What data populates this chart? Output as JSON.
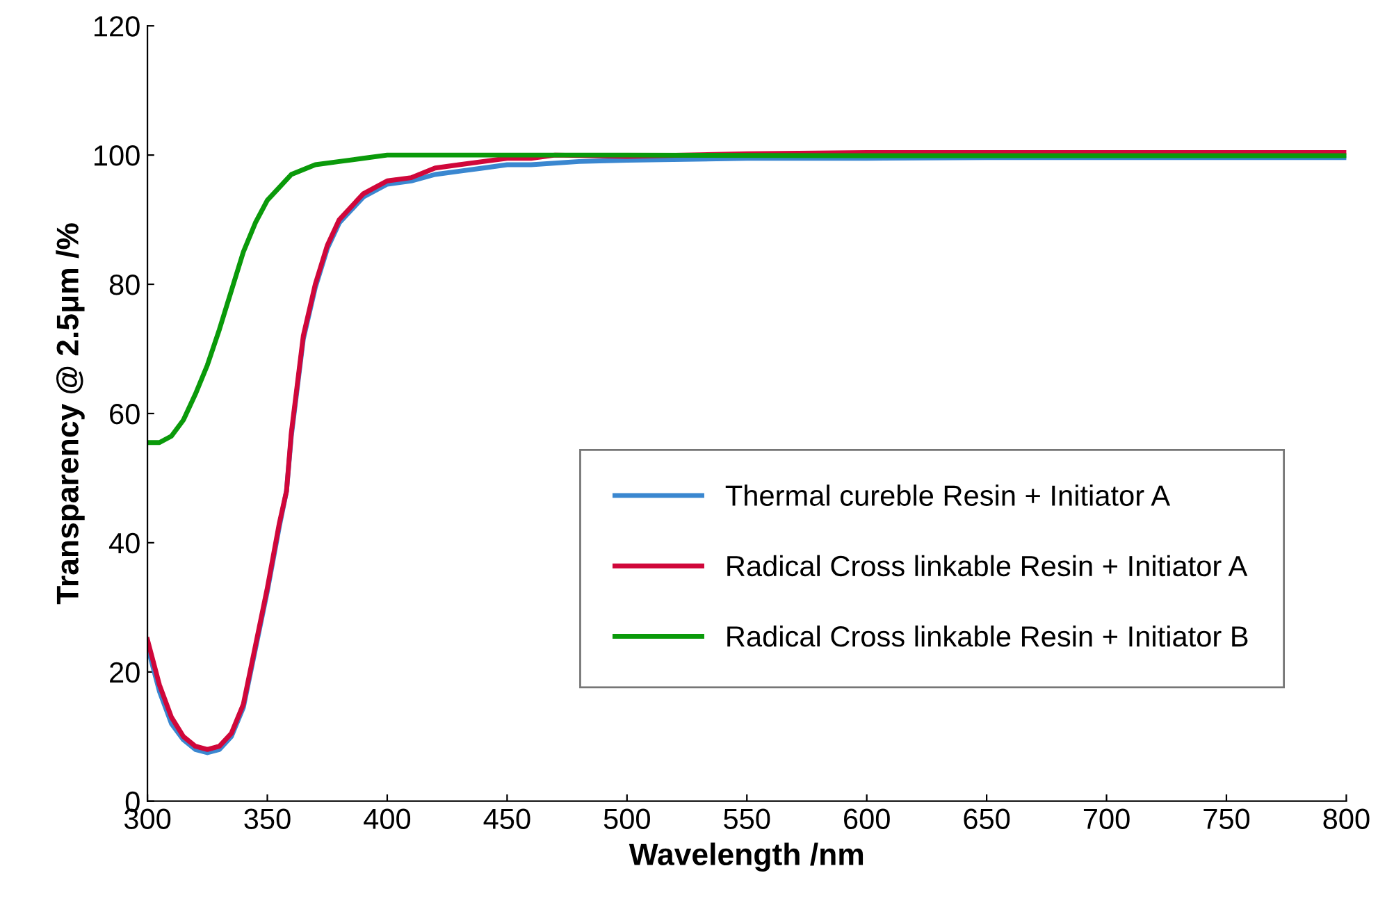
{
  "chart_data": {
    "type": "line",
    "xlabel": "Wavelength /nm",
    "ylabel": "Transparency @ 2.5μm /%",
    "xlim": [
      300,
      800
    ],
    "xticks": [
      300,
      350,
      400,
      450,
      500,
      550,
      600,
      650,
      700,
      750,
      800
    ],
    "ylim": [
      0,
      120
    ],
    "yticks": [
      0,
      20,
      40,
      60,
      80,
      100,
      120
    ],
    "grid": false,
    "legend": "right",
    "marker": "none",
    "line_style": "solid",
    "series": [
      {
        "name": "Thermal cureble Resin + Initiator A",
        "color": "#3a87d0",
        "x": [
          300,
          305,
          310,
          315,
          320,
          325,
          330,
          335,
          340,
          345,
          350,
          355,
          358,
          360,
          362,
          365,
          370,
          375,
          380,
          390,
          400,
          410,
          420,
          430,
          440,
          450,
          460,
          480,
          500,
          550,
          600,
          650,
          700,
          750,
          800
        ],
        "values": [
          24,
          17,
          12,
          9.5,
          8,
          7.5,
          8,
          10,
          14.5,
          23.5,
          32.5,
          42.5,
          48,
          56.5,
          62.5,
          71.5,
          79.5,
          85.5,
          89.5,
          93.5,
          95.5,
          96,
          97,
          97.5,
          98,
          98.5,
          98.5,
          99,
          99.2,
          99.5,
          99.5,
          99.6,
          99.6,
          99.6,
          99.6
        ]
      },
      {
        "name": "Radical Cross linkable Resin + Initiator A",
        "color": "#d0073a",
        "x": [
          300,
          305,
          310,
          315,
          320,
          325,
          330,
          335,
          340,
          345,
          350,
          355,
          358,
          360,
          362,
          365,
          370,
          375,
          380,
          390,
          400,
          410,
          420,
          430,
          440,
          450,
          460,
          470,
          500,
          550,
          600,
          650,
          700,
          750,
          800
        ],
        "values": [
          25,
          18,
          13,
          10,
          8.5,
          8,
          8.5,
          10.5,
          15,
          24,
          33,
          43,
          48,
          57,
          63,
          72,
          80,
          86,
          90,
          94,
          96,
          96.5,
          98,
          98.5,
          99,
          99.5,
          99.5,
          100,
          99.8,
          100.2,
          100.4,
          100.4,
          100.4,
          100.4,
          100.4
        ]
      },
      {
        "name": "Radical Cross linkable Resin + Initiator B",
        "color": "#0a9a0a",
        "x": [
          300,
          305,
          310,
          315,
          320,
          325,
          330,
          335,
          340,
          345,
          350,
          355,
          360,
          370,
          380,
          390,
          400,
          450,
          500,
          600,
          700,
          800
        ],
        "values": [
          55.5,
          55.5,
          56.5,
          59,
          63,
          67.5,
          73,
          79,
          85,
          89.5,
          93,
          95,
          97,
          98.5,
          99,
          99.5,
          100,
          100,
          100,
          99.9,
          99.9,
          99.9
        ]
      }
    ]
  }
}
